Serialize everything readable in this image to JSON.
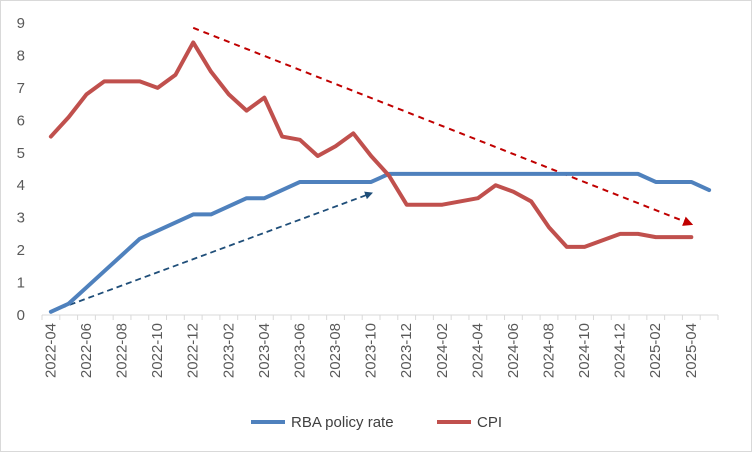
{
  "chart_data": {
    "type": "line",
    "title": "",
    "xlabel": "",
    "ylabel": "",
    "ylim": [
      0,
      9
    ],
    "yticks": [
      "0",
      "1",
      "2",
      "3",
      "4",
      "5",
      "6",
      "7",
      "8",
      "9"
    ],
    "grid": false,
    "legend_position": "bottom",
    "x": [
      "2022-04",
      "2022-05",
      "2022-06",
      "2022-07",
      "2022-08",
      "2022-09",
      "2022-10",
      "2022-11",
      "2022-12",
      "2023-01",
      "2023-02",
      "2023-03",
      "2023-04",
      "2023-05",
      "2023-06",
      "2023-07",
      "2023-08",
      "2023-09",
      "2023-10",
      "2023-11",
      "2023-12",
      "2024-01",
      "2024-02",
      "2024-03",
      "2024-04",
      "2024-05",
      "2024-06",
      "2024-07",
      "2024-08",
      "2024-09",
      "2024-10",
      "2024-11",
      "2024-12",
      "2025-01",
      "2025-02",
      "2025-03",
      "2025-04",
      "2025-05"
    ],
    "tick_labels": [
      "2022-04",
      "2022-06",
      "2022-08",
      "2022-10",
      "2022-12",
      "2023-02",
      "2023-04",
      "2023-06",
      "2023-08",
      "2023-10",
      "2023-12",
      "2024-02",
      "2024-04",
      "2024-06",
      "2024-08",
      "2024-10",
      "2024-12",
      "2025-02",
      "2025-04"
    ],
    "series": [
      {
        "name": "RBA policy rate",
        "color": "#4f81bd",
        "values": [
          0.1,
          0.35,
          0.85,
          1.35,
          1.85,
          2.35,
          2.6,
          2.85,
          3.1,
          3.1,
          3.35,
          3.6,
          3.6,
          3.85,
          4.1,
          4.1,
          4.1,
          4.1,
          4.1,
          4.35,
          4.35,
          4.35,
          4.35,
          4.35,
          4.35,
          4.35,
          4.35,
          4.35,
          4.35,
          4.35,
          4.35,
          4.35,
          4.35,
          4.35,
          4.1,
          4.1,
          4.1,
          3.85
        ]
      },
      {
        "name": "CPI",
        "color": "#c0504d",
        "values": [
          5.5,
          6.1,
          6.8,
          7.2,
          7.2,
          7.2,
          7.0,
          7.4,
          8.4,
          7.5,
          6.8,
          6.3,
          6.7,
          5.5,
          5.4,
          4.9,
          5.2,
          5.6,
          4.9,
          4.3,
          3.4,
          3.4,
          3.4,
          3.5,
          3.6,
          4.0,
          3.8,
          3.5,
          2.7,
          2.1,
          2.1,
          2.3,
          2.5,
          2.5,
          2.4,
          2.4,
          2.4,
          null
        ]
      }
    ],
    "annotations": [
      {
        "name": "rate-uptrend-arrow",
        "style": "dashed",
        "color": "#1f4e79",
        "from": {
          "x": "2022-04",
          "y": 0.1
        },
        "to": {
          "x": "2023-10",
          "y": 3.75
        }
      },
      {
        "name": "cpi-downtrend-arrow",
        "style": "dashed",
        "color": "#c00000",
        "from": {
          "x": "2022-12",
          "y": 8.85
        },
        "to": {
          "x": "2025-04",
          "y": 2.8
        }
      }
    ]
  }
}
